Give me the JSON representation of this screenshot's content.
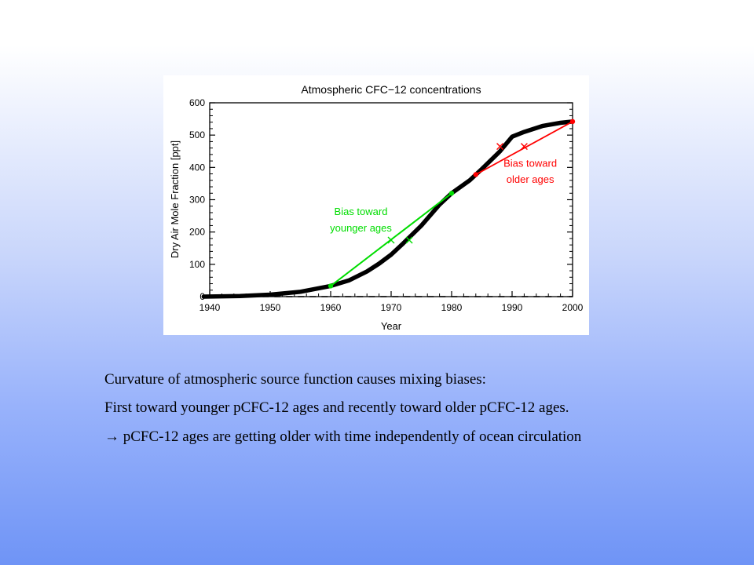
{
  "chart_data": {
    "type": "line",
    "title": "Atmospheric CFC−12 concentrations",
    "xlabel": "Year",
    "ylabel": "Dry Air Mole Fraction  [ppt]",
    "xlim": [
      1940,
      2000
    ],
    "ylim": [
      0,
      600
    ],
    "xticks": [
      1940,
      1950,
      1960,
      1970,
      1980,
      1990,
      2000
    ],
    "yticks": [
      0,
      100,
      200,
      300,
      400,
      500,
      600
    ],
    "grid": false,
    "series": [
      {
        "x": [
          1939,
          1945,
          1950,
          1955,
          1960,
          1963,
          1966,
          1968,
          1970,
          1972,
          1975,
          1978,
          1980,
          1983,
          1985,
          1988,
          1990,
          1992,
          1995,
          1998,
          2000
        ],
        "y": [
          0,
          2,
          6,
          15,
          33,
          50,
          78,
          102,
          130,
          165,
          220,
          285,
          320,
          360,
          395,
          450,
          495,
          510,
          528,
          538,
          542
        ]
      },
      {
        "x": [
          1939,
          2000
        ],
        "y": [
          0,
          0
        ]
      },
      {
        "x": [
          1960,
          1980
        ],
        "y": [
          33,
          320
        ]
      },
      {
        "x": [
          1984,
          2000
        ],
        "y": [
          378,
          542
        ]
      }
    ],
    "markers": [
      {
        "x": 1960,
        "y": 33,
        "color": "#00dd00",
        "shape": "dot"
      },
      {
        "x": 1980,
        "y": 320,
        "color": "#00dd00",
        "shape": "dot"
      },
      {
        "x": 1970,
        "y": 175,
        "color": "#00dd00",
        "shape": "cross"
      },
      {
        "x": 1973,
        "y": 175,
        "color": "#00dd00",
        "shape": "cross"
      },
      {
        "x": 1984,
        "y": 378,
        "color": "#ff0000",
        "shape": "dot"
      },
      {
        "x": 2000,
        "y": 542,
        "color": "#ff0000",
        "shape": "dot"
      },
      {
        "x": 1988,
        "y": 465,
        "color": "#ff0000",
        "shape": "cross"
      },
      {
        "x": 1992,
        "y": 465,
        "color": "#ff0000",
        "shape": "cross"
      }
    ],
    "annotations": [
      {
        "text": "Bias toward",
        "x": 1965,
        "y": 253,
        "color": "#00dd00"
      },
      {
        "text": "younger ages",
        "x": 1965,
        "y": 202,
        "color": "#00dd00"
      },
      {
        "text": "Bias toward",
        "x": 1993,
        "y": 402,
        "color": "#ff0000"
      },
      {
        "text": "older ages",
        "x": 1993,
        "y": 352,
        "color": "#ff0000"
      }
    ],
    "colors": {
      "curve": "#000000",
      "young": "#00dd00",
      "old": "#ff0000"
    }
  },
  "captions": {
    "line1": "Curvature of atmospheric source function causes mixing biases:",
    "line2": "First toward younger pCFC-12 ages and recently toward older pCFC-12 ages.",
    "line3": "→ pCFC-12 ages are getting older with time independently of ocean circulation"
  }
}
